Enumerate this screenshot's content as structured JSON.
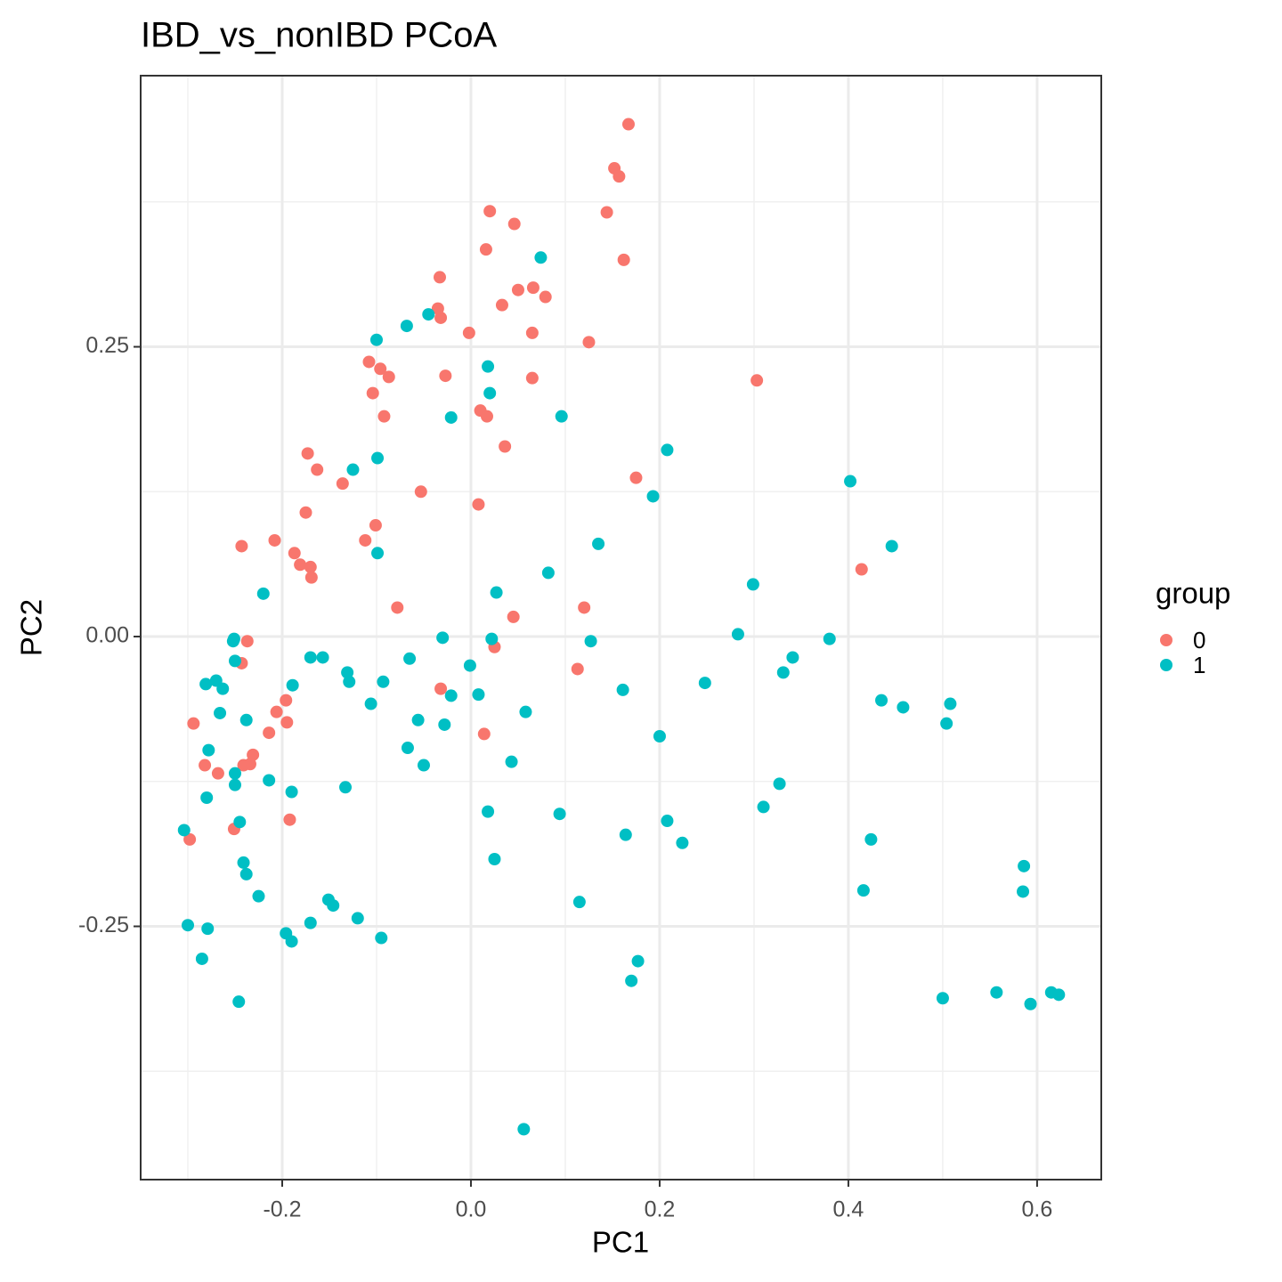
{
  "chart_data": {
    "type": "scatter",
    "title": "IBD_vs_nonIBD PCoA",
    "x_label": "PC1",
    "y_label": "PC2",
    "legend_title": "group",
    "legend_position": "right",
    "grid": true,
    "xlim": [
      -0.35,
      0.668
    ],
    "ylim": [
      -0.4685,
      0.4839
    ],
    "xticks": [
      -0.2,
      {
        "value": 0,
        "label": "0.0"
      },
      0.2,
      0.4,
      0.6
    ],
    "yticks": [
      -0.25,
      {
        "value": 0,
        "label": "0.00"
      },
      0.25
    ],
    "series": [
      {
        "name": "0",
        "color": "#F8766D",
        "x": [
          0.167,
          0.152,
          0.157,
          0.144,
          0.02,
          0.046,
          0.162,
          0.016,
          -0.033,
          0.05,
          0.066,
          0.079,
          0.033,
          -0.035,
          -0.032,
          -0.002,
          0.065,
          0.125,
          -0.108,
          -0.096,
          -0.087,
          -0.027,
          0.065,
          -0.104,
          0.303,
          -0.092,
          0.01,
          0.017,
          0.036,
          -0.173,
          -0.163,
          -0.136,
          0.175,
          -0.053,
          0.008,
          -0.175,
          -0.101,
          -0.208,
          -0.243,
          -0.112,
          -0.187,
          -0.181,
          -0.17,
          -0.169,
          0.414,
          -0.078,
          0.12,
          0.045,
          -0.237,
          0.025,
          -0.243,
          0.113,
          -0.032,
          -0.196,
          -0.206,
          -0.294,
          -0.195,
          -0.214,
          0.014,
          -0.231,
          -0.282,
          -0.234,
          -0.241,
          -0.268,
          -0.192,
          -0.251,
          -0.298
        ],
        "values": [
          0.442,
          0.404,
          0.397,
          0.366,
          0.367,
          0.356,
          0.325,
          0.334,
          0.31,
          0.299,
          0.301,
          0.293,
          0.286,
          0.283,
          0.275,
          0.262,
          0.262,
          0.254,
          0.237,
          0.231,
          0.224,
          0.225,
          0.223,
          0.21,
          0.221,
          0.19,
          0.195,
          0.19,
          0.164,
          0.158,
          0.144,
          0.132,
          0.137,
          0.125,
          0.114,
          0.107,
          0.096,
          0.083,
          0.078,
          0.083,
          0.072,
          0.062,
          0.06,
          0.051,
          0.058,
          0.025,
          0.025,
          0.017,
          -0.004,
          -0.009,
          -0.023,
          -0.028,
          -0.045,
          -0.055,
          -0.065,
          -0.075,
          -0.074,
          -0.083,
          -0.084,
          -0.102,
          -0.111,
          -0.11,
          -0.111,
          -0.118,
          -0.158,
          -0.166,
          -0.175
        ]
      },
      {
        "name": "1",
        "color": "#00BFC4",
        "x": [
          0.074,
          -0.045,
          -0.068,
          -0.1,
          0.018,
          0.02,
          -0.021,
          0.096,
          0.208,
          -0.099,
          -0.125,
          0.193,
          0.402,
          0.135,
          0.446,
          -0.099,
          0.082,
          0.027,
          0.299,
          -0.22,
          -0.251,
          -0.252,
          -0.03,
          0.022,
          0.127,
          0.283,
          0.38,
          -0.25,
          -0.17,
          -0.157,
          0.341,
          -0.001,
          -0.281,
          -0.27,
          -0.263,
          -0.189,
          -0.131,
          -0.129,
          -0.093,
          -0.065,
          -0.021,
          0.008,
          0.161,
          0.248,
          0.331,
          0.435,
          0.458,
          0.508,
          0.504,
          -0.266,
          -0.238,
          -0.106,
          -0.056,
          -0.028,
          0.058,
          0.2,
          -0.278,
          -0.067,
          -0.05,
          0.043,
          -0.25,
          -0.25,
          -0.214,
          -0.19,
          -0.133,
          0.327,
          0.31,
          -0.28,
          0.018,
          0.094,
          -0.245,
          0.208,
          0.164,
          0.224,
          0.424,
          -0.304,
          0.025,
          0.586,
          -0.241,
          -0.238,
          0.416,
          0.585,
          -0.225,
          -0.151,
          -0.146,
          -0.12,
          0.115,
          -0.17,
          -0.3,
          -0.279,
          -0.196,
          -0.19,
          -0.095,
          -0.285,
          0.177,
          0.17,
          -0.246,
          0.5,
          0.557,
          0.593,
          0.615,
          0.623,
          0.056
        ],
        "values": [
          0.327,
          0.278,
          0.268,
          0.256,
          0.233,
          0.21,
          0.189,
          0.19,
          0.161,
          0.154,
          0.144,
          0.121,
          0.134,
          0.08,
          0.078,
          0.072,
          0.055,
          0.038,
          0.045,
          0.037,
          -0.002,
          -0.004,
          -0.001,
          -0.002,
          -0.004,
          0.002,
          -0.002,
          -0.021,
          -0.018,
          -0.018,
          -0.018,
          -0.025,
          -0.041,
          -0.038,
          -0.045,
          -0.042,
          -0.031,
          -0.039,
          -0.039,
          -0.019,
          -0.051,
          -0.05,
          -0.046,
          -0.04,
          -0.031,
          -0.055,
          -0.061,
          -0.058,
          -0.075,
          -0.066,
          -0.072,
          -0.058,
          -0.072,
          -0.076,
          -0.065,
          -0.086,
          -0.098,
          -0.096,
          -0.111,
          -0.108,
          -0.118,
          -0.128,
          -0.124,
          -0.134,
          -0.13,
          -0.127,
          -0.147,
          -0.139,
          -0.151,
          -0.153,
          -0.16,
          -0.159,
          -0.171,
          -0.178,
          -0.175,
          -0.167,
          -0.192,
          -0.198,
          -0.195,
          -0.205,
          -0.219,
          -0.22,
          -0.224,
          -0.227,
          -0.232,
          -0.243,
          -0.229,
          -0.247,
          -0.249,
          -0.252,
          -0.256,
          -0.263,
          -0.26,
          -0.278,
          -0.28,
          -0.297,
          -0.315,
          -0.312,
          -0.307,
          -0.317,
          -0.307,
          -0.309,
          -0.425
        ]
      }
    ]
  }
}
